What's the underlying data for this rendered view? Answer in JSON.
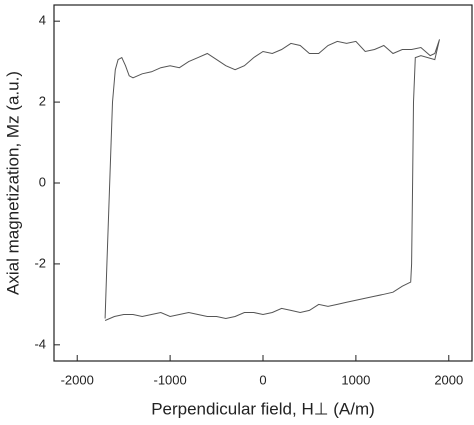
{
  "chart_data": {
    "type": "line",
    "xlabel": "Perpendicular field, H⊥ (A/m)",
    "ylabel": "Axial magnetization, Mz (a.u.)",
    "x": [
      -1700,
      -1680,
      -1650,
      -1620,
      -1590,
      -1560,
      -1520,
      -1480,
      -1440,
      -1400,
      -1300,
      -1200,
      -1100,
      -1000,
      -900,
      -800,
      -700,
      -600,
      -500,
      -400,
      -300,
      -200,
      -100,
      0,
      100,
      200,
      300,
      400,
      500,
      600,
      700,
      800,
      900,
      1000,
      1100,
      1200,
      1300,
      1400,
      1500,
      1600,
      1700,
      1800,
      1850,
      1900,
      1850,
      1700,
      1640,
      1620,
      1610,
      1600,
      1590,
      1500,
      1400,
      1300,
      1200,
      1100,
      1000,
      900,
      800,
      700,
      600,
      500,
      400,
      300,
      200,
      100,
      0,
      -100,
      -200,
      -300,
      -400,
      -500,
      -600,
      -700,
      -800,
      -900,
      -1000,
      -1100,
      -1200,
      -1300,
      -1400,
      -1500,
      -1600,
      -1700
    ],
    "values": [
      -3.35,
      -2.0,
      0,
      2.0,
      2.8,
      3.05,
      3.1,
      2.9,
      2.65,
      2.6,
      2.7,
      2.75,
      2.85,
      2.9,
      2.85,
      3.0,
      3.1,
      3.2,
      3.05,
      2.9,
      2.8,
      2.9,
      3.1,
      3.25,
      3.2,
      3.3,
      3.45,
      3.4,
      3.2,
      3.2,
      3.4,
      3.5,
      3.45,
      3.5,
      3.25,
      3.3,
      3.4,
      3.2,
      3.3,
      3.3,
      3.35,
      3.15,
      3.2,
      3.55,
      3.05,
      3.15,
      3.1,
      2.0,
      0,
      -2.0,
      -2.45,
      -2.55,
      -2.7,
      -2.75,
      -2.8,
      -2.85,
      -2.9,
      -2.95,
      -3.0,
      -3.05,
      -3.0,
      -3.15,
      -3.2,
      -3.15,
      -3.1,
      -3.2,
      -3.25,
      -3.2,
      -3.2,
      -3.3,
      -3.35,
      -3.3,
      -3.3,
      -3.25,
      -3.2,
      -3.25,
      -3.3,
      -3.2,
      -3.25,
      -3.3,
      -3.25,
      -3.25,
      -3.3,
      -3.4
    ],
    "color": "#555555",
    "xlim": [
      -2250,
      2250
    ],
    "xticks": [
      -2000,
      -1000,
      0,
      1000,
      2000
    ],
    "ylim": [
      -4.4,
      4.4
    ],
    "yticks": [
      -4,
      -2,
      0,
      2,
      4
    ]
  }
}
